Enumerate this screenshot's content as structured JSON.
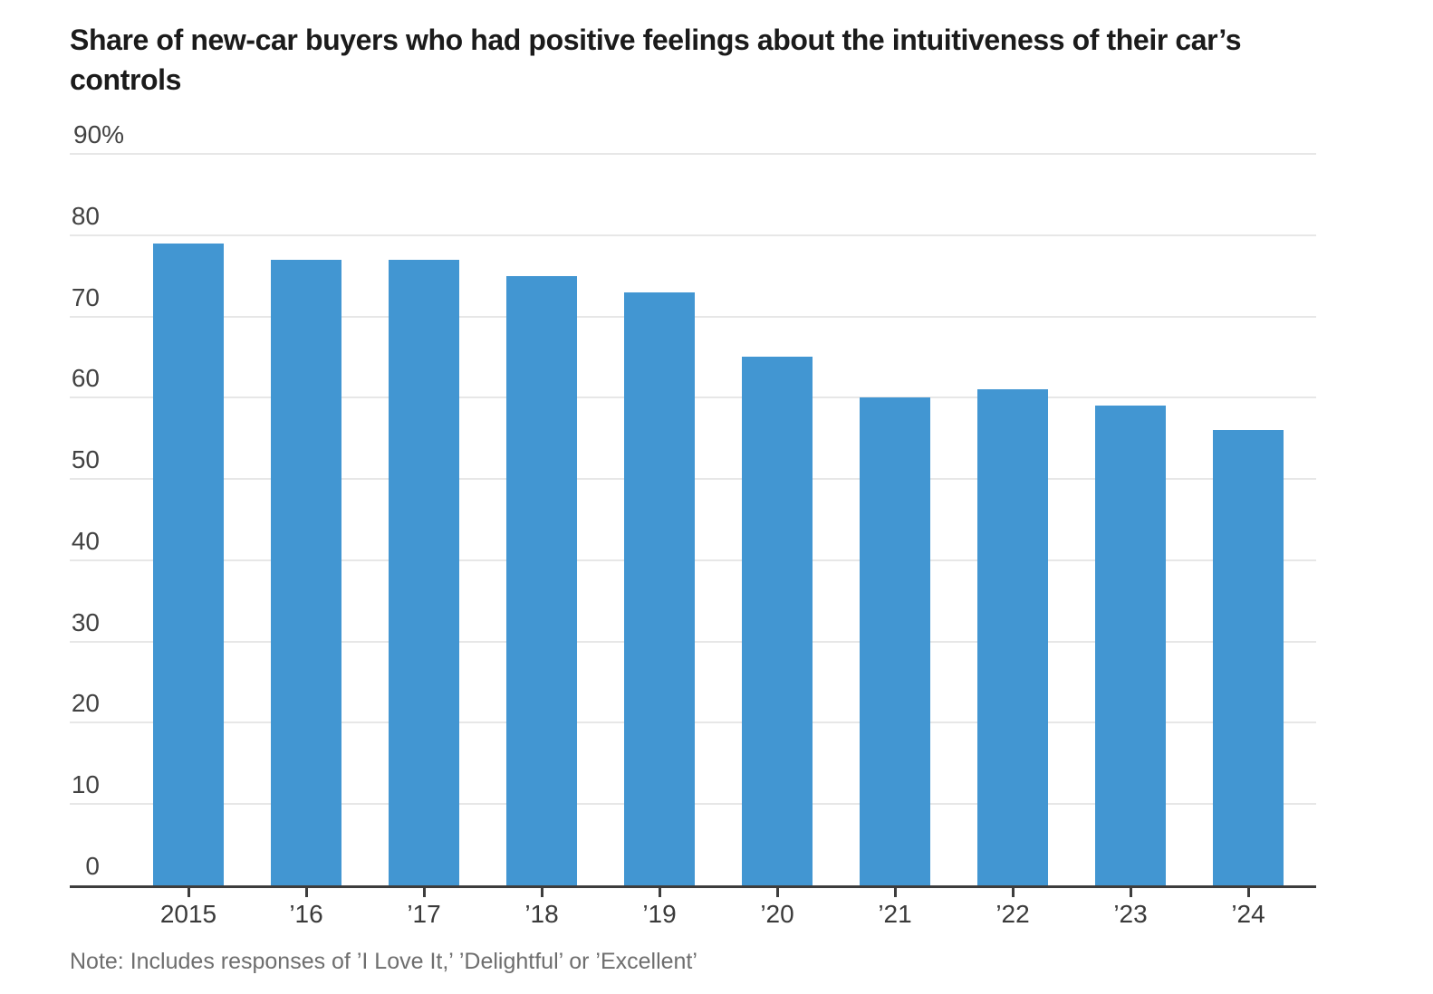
{
  "title": {
    "line1": "Share of new-car buyers who had positive feelings about the intuitiveness of their car’s",
    "line2": "controls"
  },
  "note": "Note: Includes responses of ’I Love It,’ ’Delightful’ or ’Excellent’",
  "colors": {
    "bar": "#4296d2",
    "axis": "#3d3d3d",
    "gridline": "#e7e7e7"
  },
  "chart_data": {
    "type": "bar",
    "title": "Share of new-car buyers who had positive feelings about the intuitiveness of their car’s controls",
    "categories": [
      "2015",
      "’16",
      "’17",
      "’18",
      "’19",
      "’20",
      "’21",
      "’22",
      "’23",
      "’24"
    ],
    "values": [
      79,
      77,
      77,
      75,
      73,
      65,
      60,
      61,
      59,
      56
    ],
    "unit": "%",
    "xlabel": "",
    "ylabel": "",
    "ylim": [
      0,
      90
    ],
    "yticks": [
      0,
      10,
      20,
      30,
      40,
      50,
      60,
      70,
      80,
      90
    ],
    "ytick_labels": [
      "0",
      "10",
      "20",
      "30",
      "40",
      "50",
      "60",
      "70",
      "80",
      "90%"
    ],
    "grid": true,
    "legend": "none",
    "bar_color": "#4296d2",
    "note": "Note: Includes responses of ’I Love It,’ ’Delightful’ or ’Excellent’"
  }
}
